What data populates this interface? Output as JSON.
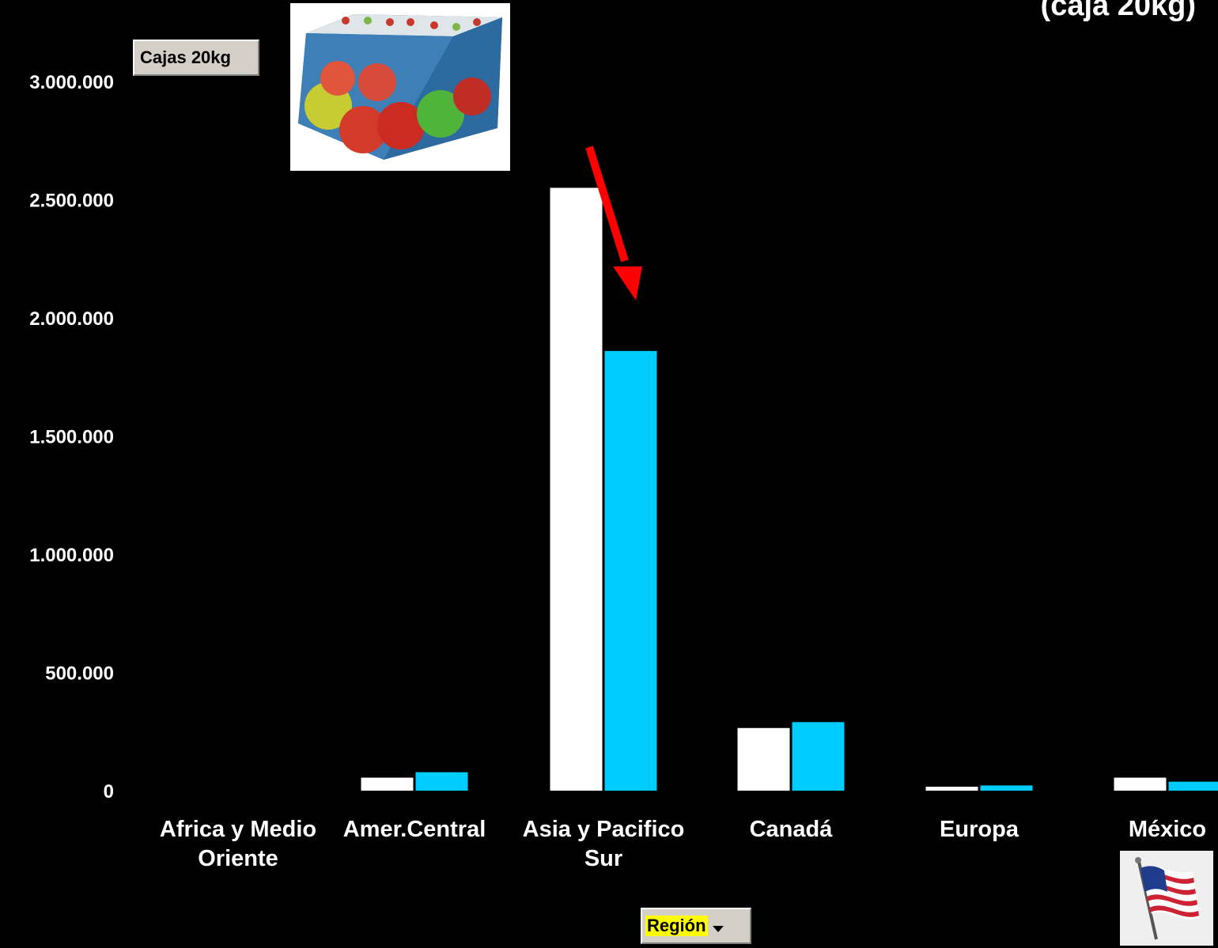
{
  "title_fragment": "(caja 20kg)",
  "units_button": {
    "label": "Cajas 20kg"
  },
  "region_button": {
    "label": "Región"
  },
  "colors": {
    "background": "#000000",
    "series_1": "#ffffff",
    "series_2": "#00ccff",
    "arrow": "#ff0000"
  },
  "chart_data": {
    "type": "bar",
    "title": "(caja 20kg)",
    "xlabel": "Región",
    "ylabel": "Cajas 20kg",
    "ylim": [
      0,
      3000000
    ],
    "y_ticks": [
      "0",
      "500.000",
      "1.000.000",
      "1.500.000",
      "2.000.000",
      "2.500.000",
      "3.000.000"
    ],
    "y_tick_values": [
      0,
      500000,
      1000000,
      1500000,
      2000000,
      2500000,
      3000000
    ],
    "grid": false,
    "categories": [
      [
        "Africa y Medio",
        "Oriente"
      ],
      [
        "Amer.Central"
      ],
      [
        "Asia y Pacifico",
        "Sur"
      ],
      [
        "Canadá"
      ],
      [
        "Europa"
      ],
      [
        "México"
      ]
    ],
    "series": [
      {
        "color": "#ffffff",
        "values": [
          0,
          55000,
          2550000,
          265000,
          15000,
          55000
        ]
      },
      {
        "color": "#00ccff",
        "values": [
          0,
          78000,
          1860000,
          290000,
          22000,
          38000
        ]
      }
    ],
    "annotation": "red arrow pointing at the Asia y Pacifico Sur second-series bar"
  }
}
